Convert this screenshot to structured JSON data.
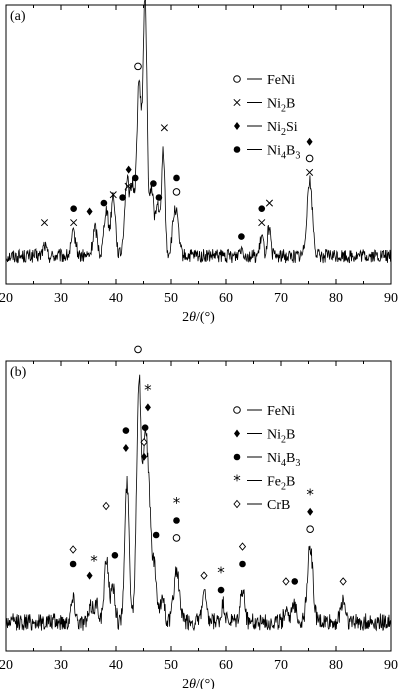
{
  "chart_data": [
    {
      "type": "line",
      "panel_label": "(a)",
      "xlabel_prefix": "2",
      "xlabel_theta": "θ",
      "xlabel_unit": "/(°)",
      "xlim": [
        20,
        90
      ],
      "xticks": [
        20,
        30,
        40,
        50,
        60,
        70,
        80,
        90
      ],
      "baseline": 0.1,
      "noise": 0.025,
      "peaks": [
        {
          "x": 27.0,
          "h": 0.04,
          "w": 0.3
        },
        {
          "x": 32.3,
          "h": 0.08,
          "w": 0.4
        },
        {
          "x": 36.2,
          "h": 0.1,
          "w": 0.4
        },
        {
          "x": 38.2,
          "h": 0.17,
          "w": 0.4
        },
        {
          "x": 39.5,
          "h": 0.22,
          "w": 0.4
        },
        {
          "x": 42.0,
          "h": 0.27,
          "w": 0.45
        },
        {
          "x": 43.0,
          "h": 0.22,
          "w": 0.35
        },
        {
          "x": 44.2,
          "h": 0.62,
          "w": 0.45
        },
        {
          "x": 45.3,
          "h": 0.9,
          "w": 0.35
        },
        {
          "x": 46.5,
          "h": 0.24,
          "w": 0.4
        },
        {
          "x": 47.6,
          "h": 0.18,
          "w": 0.35
        },
        {
          "x": 48.6,
          "h": 0.38,
          "w": 0.3
        },
        {
          "x": 50.8,
          "h": 0.17,
          "w": 0.5
        },
        {
          "x": 62.8,
          "h": 0.03,
          "w": 0.4
        },
        {
          "x": 66.5,
          "h": 0.07,
          "w": 0.3
        },
        {
          "x": 67.8,
          "h": 0.1,
          "w": 0.3
        },
        {
          "x": 75.2,
          "h": 0.27,
          "w": 0.5
        }
      ],
      "markers": [
        {
          "x": 27.0,
          "s": "x",
          "y": 0.22
        },
        {
          "x": 32.3,
          "s": "x",
          "y": 0.22
        },
        {
          "x": 32.3,
          "s": "dot",
          "y": 0.27
        },
        {
          "x": 35.2,
          "s": "diamond",
          "y": 0.26
        },
        {
          "x": 37.8,
          "s": "dot",
          "y": 0.29
        },
        {
          "x": 39.5,
          "s": "x",
          "y": 0.32
        },
        {
          "x": 41.2,
          "s": "dot",
          "y": 0.31
        },
        {
          "x": 42.2,
          "s": "x",
          "y": 0.35
        },
        {
          "x": 42.3,
          "s": "diamond",
          "y": 0.41
        },
        {
          "x": 43.5,
          "s": "dot",
          "y": 0.38
        },
        {
          "x": 44.0,
          "s": "circle",
          "y": 0.78
        },
        {
          "x": 45.3,
          "s": "x",
          "y": 1.06
        },
        {
          "x": 45.3,
          "s": "diamond",
          "y": 1.11
        },
        {
          "x": 46.8,
          "s": "dot",
          "y": 0.36
        },
        {
          "x": 47.8,
          "s": "dot",
          "y": 0.31
        },
        {
          "x": 48.8,
          "s": "x",
          "y": 0.56
        },
        {
          "x": 51.0,
          "s": "circle",
          "y": 0.33
        },
        {
          "x": 51.0,
          "s": "dot",
          "y": 0.38
        },
        {
          "x": 62.8,
          "s": "dot",
          "y": 0.17
        },
        {
          "x": 66.5,
          "s": "x",
          "y": 0.22
        },
        {
          "x": 66.5,
          "s": "dot",
          "y": 0.27
        },
        {
          "x": 67.9,
          "s": "x",
          "y": 0.29
        },
        {
          "x": 75.2,
          "s": "x",
          "y": 0.4
        },
        {
          "x": 75.2,
          "s": "circle",
          "y": 0.45
        },
        {
          "x": 75.2,
          "s": "diamond",
          "y": 0.51
        }
      ],
      "legend": [
        {
          "symbol": "circle",
          "label": "FeNi",
          "parts": [
            {
              "t": "FeNi"
            }
          ]
        },
        {
          "symbol": "x",
          "label": "Ni2B",
          "parts": [
            {
              "t": "Ni"
            },
            {
              "t": "2",
              "sub": true
            },
            {
              "t": "B"
            }
          ]
        },
        {
          "symbol": "diamond",
          "label": "Ni2Si",
          "parts": [
            {
              "t": "Ni"
            },
            {
              "t": "2",
              "sub": true
            },
            {
              "t": "Si"
            }
          ]
        },
        {
          "symbol": "dot",
          "label": "Ni4B3",
          "parts": [
            {
              "t": "Ni"
            },
            {
              "t": "4",
              "sub": true
            },
            {
              "t": "B"
            },
            {
              "t": "3",
              "sub": true
            }
          ]
        }
      ]
    },
    {
      "type": "line",
      "panel_label": "(b)",
      "xlabel_prefix": "2",
      "xlabel_theta": "θ",
      "xlabel_unit": "/(°)",
      "xlim": [
        20,
        90
      ],
      "xticks": [
        20,
        30,
        40,
        50,
        60,
        70,
        80,
        90
      ],
      "baseline": 0.1,
      "noise": 0.03,
      "peaks": [
        {
          "x": 32.2,
          "h": 0.08,
          "w": 0.4
        },
        {
          "x": 35.5,
          "h": 0.05,
          "w": 0.4
        },
        {
          "x": 36.5,
          "h": 0.06,
          "w": 0.4
        },
        {
          "x": 38.3,
          "h": 0.22,
          "w": 0.4
        },
        {
          "x": 39.5,
          "h": 0.12,
          "w": 0.35
        },
        {
          "x": 42.0,
          "h": 0.48,
          "w": 0.4
        },
        {
          "x": 44.2,
          "h": 0.84,
          "w": 0.45
        },
        {
          "x": 45.3,
          "h": 0.55,
          "w": 0.35
        },
        {
          "x": 46.0,
          "h": 0.4,
          "w": 0.4
        },
        {
          "x": 47.0,
          "h": 0.18,
          "w": 0.4
        },
        {
          "x": 48.5,
          "h": 0.09,
          "w": 0.35
        },
        {
          "x": 51.0,
          "h": 0.18,
          "w": 0.5
        },
        {
          "x": 56.0,
          "h": 0.1,
          "w": 0.35
        },
        {
          "x": 59.5,
          "h": 0.06,
          "w": 0.3
        },
        {
          "x": 63.0,
          "h": 0.11,
          "w": 0.4
        },
        {
          "x": 71.0,
          "h": 0.05,
          "w": 0.4
        },
        {
          "x": 72.5,
          "h": 0.06,
          "w": 0.4
        },
        {
          "x": 75.3,
          "h": 0.26,
          "w": 0.5
        },
        {
          "x": 81.3,
          "h": 0.08,
          "w": 0.4
        }
      ],
      "markers": [
        {
          "x": 32.2,
          "s": "dot",
          "y": 0.3
        },
        {
          "x": 32.2,
          "s": "odiamond",
          "y": 0.35
        },
        {
          "x": 35.2,
          "s": "diamond",
          "y": 0.26
        },
        {
          "x": 36.0,
          "s": "star",
          "y": 0.31
        },
        {
          "x": 38.2,
          "s": "odiamond",
          "y": 0.5
        },
        {
          "x": 39.8,
          "s": "dot",
          "y": 0.33
        },
        {
          "x": 41.8,
          "s": "diamond",
          "y": 0.7
        },
        {
          "x": 41.8,
          "s": "dot",
          "y": 0.76
        },
        {
          "x": 44.0,
          "s": "circle",
          "y": 1.04
        },
        {
          "x": 45.1,
          "s": "diamond",
          "y": 0.67
        },
        {
          "x": 45.1,
          "s": "odiamond",
          "y": 0.72
        },
        {
          "x": 45.3,
          "s": "dot",
          "y": 0.77
        },
        {
          "x": 45.8,
          "s": "diamond",
          "y": 0.84
        },
        {
          "x": 45.8,
          "s": "star",
          "y": 0.9
        },
        {
          "x": 47.3,
          "s": "dot",
          "y": 0.4
        },
        {
          "x": 51.0,
          "s": "circle",
          "y": 0.39
        },
        {
          "x": 51.0,
          "s": "dot",
          "y": 0.45
        },
        {
          "x": 51.0,
          "s": "star",
          "y": 0.51
        },
        {
          "x": 56.0,
          "s": "odiamond",
          "y": 0.26
        },
        {
          "x": 59.1,
          "s": "dot",
          "y": 0.21
        },
        {
          "x": 59.1,
          "s": "star",
          "y": 0.27
        },
        {
          "x": 63.0,
          "s": "dot",
          "y": 0.3
        },
        {
          "x": 63.0,
          "s": "odiamond",
          "y": 0.36
        },
        {
          "x": 70.9,
          "s": "odiamond",
          "y": 0.24
        },
        {
          "x": 72.5,
          "s": "dot",
          "y": 0.24
        },
        {
          "x": 75.3,
          "s": "circle",
          "y": 0.42
        },
        {
          "x": 75.3,
          "s": "diamond",
          "y": 0.48
        },
        {
          "x": 75.3,
          "s": "star",
          "y": 0.54
        },
        {
          "x": 81.3,
          "s": "odiamond",
          "y": 0.24
        }
      ],
      "legend": [
        {
          "symbol": "circle",
          "label": "FeNi",
          "parts": [
            {
              "t": "FeNi"
            }
          ]
        },
        {
          "symbol": "diamond",
          "label": "Ni2B",
          "parts": [
            {
              "t": "Ni"
            },
            {
              "t": "2",
              "sub": true
            },
            {
              "t": "B"
            }
          ]
        },
        {
          "symbol": "dot",
          "label": "Ni4B3",
          "parts": [
            {
              "t": "Ni"
            },
            {
              "t": "4",
              "sub": true
            },
            {
              "t": "B"
            },
            {
              "t": "3",
              "sub": true
            }
          ]
        },
        {
          "symbol": "star",
          "label": "Fe2B",
          "parts": [
            {
              "t": "Fe"
            },
            {
              "t": "2",
              "sub": true
            },
            {
              "t": "B"
            }
          ]
        },
        {
          "symbol": "odiamond",
          "label": "CrB",
          "parts": [
            {
              "t": "CrB"
            }
          ]
        }
      ]
    }
  ]
}
